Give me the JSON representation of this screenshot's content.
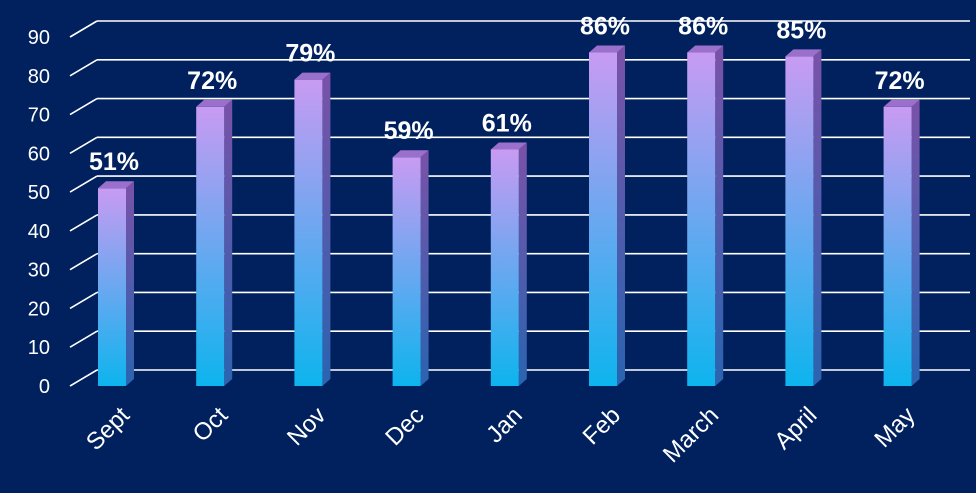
{
  "chart_data": {
    "type": "bar",
    "categories": [
      "Sept",
      "Oct",
      "Nov",
      "Dec",
      "Jan",
      "Feb",
      "March",
      "April",
      "May"
    ],
    "values": [
      51,
      72,
      79,
      59,
      61,
      86,
      86,
      85,
      72
    ],
    "data_labels": [
      "51%",
      "72%",
      "79%",
      "59%",
      "61%",
      "86%",
      "86%",
      "85%",
      "72%"
    ],
    "title": "",
    "xlabel": "",
    "ylabel": "",
    "ylim": [
      0,
      90
    ],
    "yticks": [
      0,
      10,
      20,
      30,
      40,
      50,
      60,
      70,
      80,
      90
    ],
    "grid": true,
    "legend": "none",
    "colors": {
      "background": "#00215e",
      "gridline": "#ffffff",
      "bar_top": "#c89bf2",
      "bar_bottom": "#0db4ee",
      "bar_side": "#2a64b0",
      "bar_cap": "#9a70cc",
      "text": "#ffffff"
    }
  }
}
